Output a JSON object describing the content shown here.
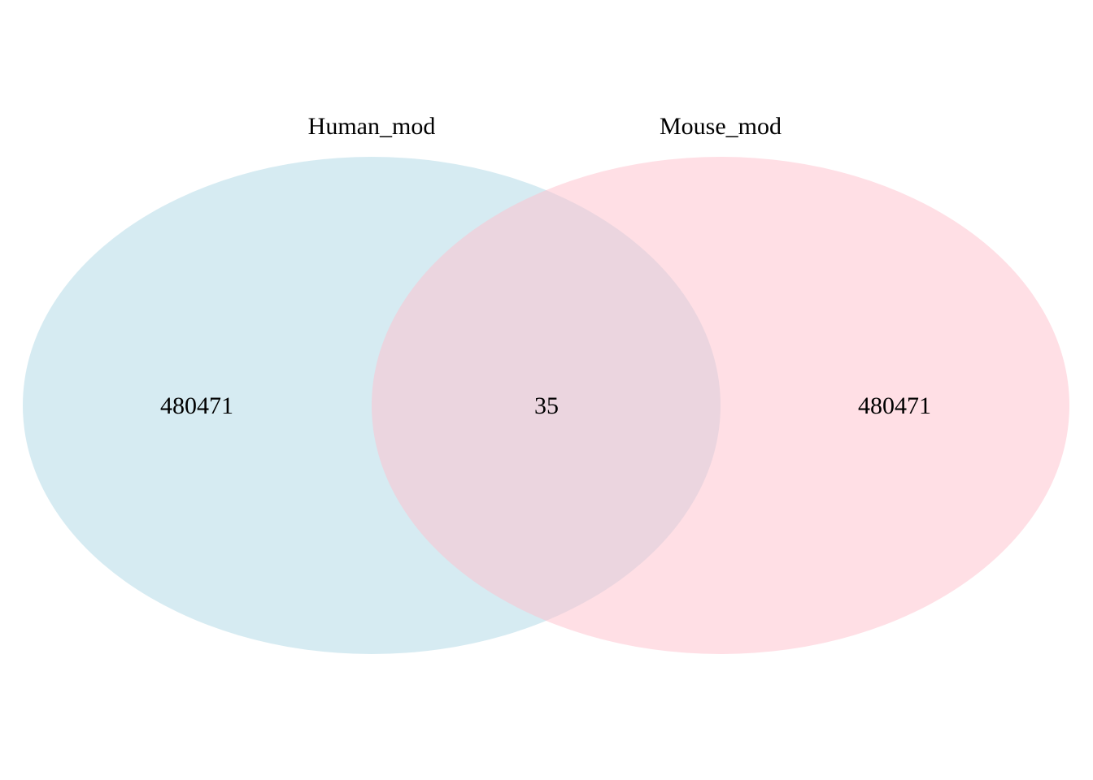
{
  "diagram": {
    "type": "venn",
    "sets": [
      {
        "label": "Human_mod",
        "color": "#add8e6"
      },
      {
        "label": "Mouse_mod",
        "color": "#ffc0cb"
      }
    ],
    "regions": {
      "human_only": "480471",
      "intersection": "35",
      "mouse_only": "480471"
    },
    "fill_opacity": 0.5
  }
}
